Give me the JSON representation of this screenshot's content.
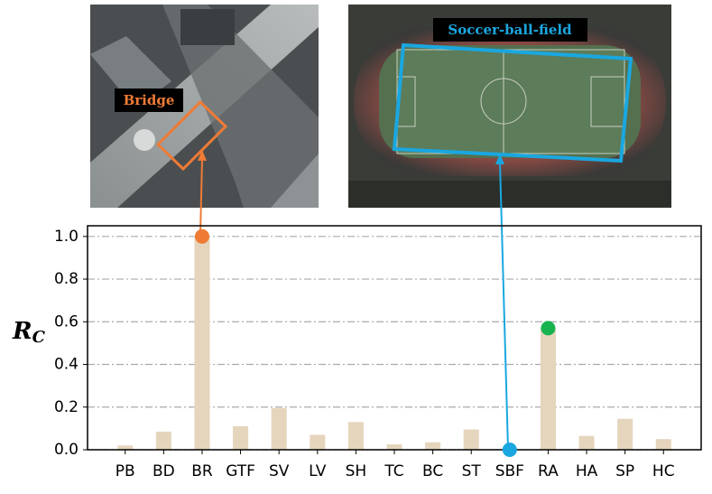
{
  "chart_data": {
    "type": "bar",
    "ylabel": [
      "R",
      "C"
    ],
    "categories": [
      "PB",
      "BD",
      "BR",
      "GTF",
      "SV",
      "LV",
      "SH",
      "TC",
      "BC",
      "ST",
      "SBF",
      "RA",
      "HA",
      "SP",
      "HC"
    ],
    "values": [
      0.02,
      0.085,
      1.0,
      0.11,
      0.195,
      0.07,
      0.13,
      0.025,
      0.035,
      0.095,
      0.0,
      0.57,
      0.065,
      0.145,
      0.05
    ],
    "color": "#e6d5bd",
    "marker_colors": [
      null,
      null,
      "#ef7b35",
      null,
      null,
      null,
      null,
      null,
      null,
      null,
      "#1aa7e0",
      "#17b34f",
      null,
      null,
      null
    ],
    "ylim": [
      0,
      1.05
    ],
    "yticks": [
      {
        "value": 0,
        "label": "0.0"
      },
      0.2,
      0.4,
      0.6,
      0.8,
      {
        "value": 1,
        "label": "1.0"
      }
    ],
    "grid": true,
    "annotations": [
      {
        "text": "Bridge",
        "color": "#ef7b35"
      },
      {
        "text": "Soccer-ball-field",
        "color": "#1aa7e0"
      }
    ]
  }
}
